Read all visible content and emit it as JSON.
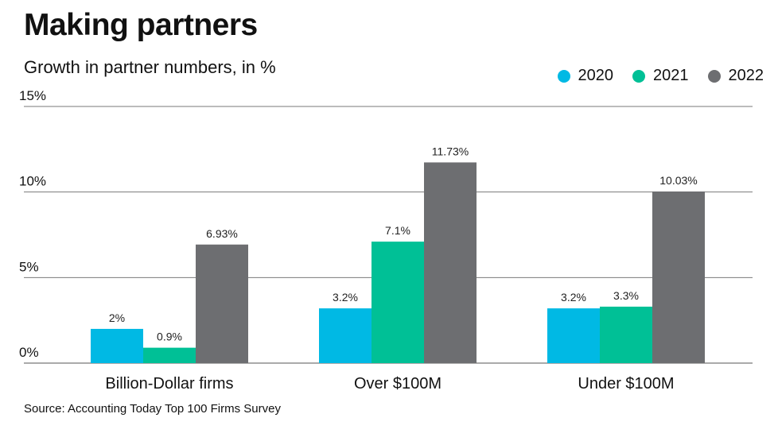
{
  "header": {
    "title": "Making partners",
    "subtitle": "Growth in partner numbers, in %"
  },
  "footer": {
    "source": "Source: Accounting Today Top 100 Firms Survey"
  },
  "colors": {
    "series_2020": "#00b9e4",
    "series_2021": "#00c096",
    "series_2022": "#6d6e71",
    "gridline": "#7a7a7a",
    "text": "#111111"
  },
  "chart_data": {
    "type": "bar",
    "title": "Making partners",
    "subtitle": "Growth in partner numbers, in %",
    "xlabel": "",
    "ylabel": "",
    "ylim": [
      0,
      15
    ],
    "yticks": [
      0,
      5,
      10,
      15
    ],
    "ytick_labels": [
      "0%",
      "5%",
      "10%",
      "15%"
    ],
    "grid": true,
    "legend_position": "top-right",
    "categories": [
      "Billion-Dollar firms",
      "Over $100M",
      "Under $100M"
    ],
    "series": [
      {
        "name": "2020",
        "color": "#00b9e4",
        "values": [
          2,
          3.2,
          3.2
        ],
        "labels": [
          "2%",
          "3.2%",
          "3.2%"
        ]
      },
      {
        "name": "2021",
        "color": "#00c096",
        "values": [
          0.9,
          7.1,
          3.3
        ],
        "labels": [
          "0.9%",
          "7.1%",
          "3.3%"
        ]
      },
      {
        "name": "2022",
        "color": "#6d6e71",
        "values": [
          6.93,
          11.73,
          10.03
        ],
        "labels": [
          "6.93%",
          "11.73%",
          "10.03%"
        ]
      }
    ]
  }
}
